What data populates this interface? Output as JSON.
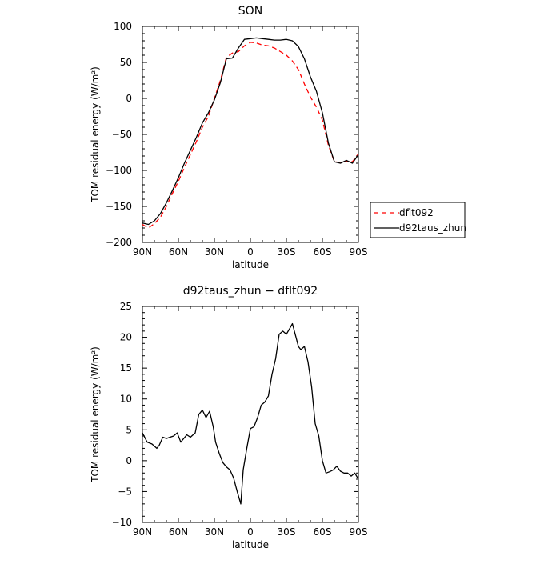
{
  "chart_data": [
    {
      "type": "line",
      "title": "SON",
      "xlabel": "latitude",
      "ylabel": "TOM residual energy (W/m²)",
      "xlim": [
        90,
        -90
      ],
      "ylim": [
        -200,
        100
      ],
      "x_ticks": [
        90,
        60,
        30,
        0,
        -30,
        -60,
        -90
      ],
      "x_tick_labels": [
        "90N",
        "60N",
        "30N",
        "0",
        "30S",
        "60S",
        "90S"
      ],
      "y_ticks": [
        -200,
        -150,
        -100,
        -50,
        0,
        50,
        100
      ],
      "y_tick_labels": [
        "−200",
        "−150",
        "−100",
        "−50",
        "0",
        "50",
        "100"
      ],
      "grid": false,
      "legend_position": "right",
      "series": [
        {
          "name": "dflt092",
          "color": "#ff0000",
          "dash": "dashed",
          "x": [
            90,
            85,
            80,
            75,
            70,
            65,
            60,
            55,
            50,
            45,
            40,
            35,
            30,
            25,
            20,
            15,
            10,
            5,
            0,
            -5,
            -10,
            -15,
            -20,
            -25,
            -30,
            -35,
            -40,
            -45,
            -50,
            -55,
            -60,
            -65,
            -70,
            -75,
            -80,
            -85,
            -90
          ],
          "values": [
            -175,
            -180,
            -174,
            -165,
            -150,
            -132,
            -115,
            -96,
            -78,
            -60,
            -40,
            -25,
            0,
            25,
            57,
            63,
            65,
            73,
            78,
            77,
            74,
            73,
            70,
            65,
            60,
            52,
            40,
            20,
            2,
            -12,
            -30,
            -65,
            -88,
            -89,
            -87,
            -88,
            -77
          ]
        },
        {
          "name": "d92taus_zhun",
          "color": "#000000",
          "dash": "solid",
          "x": [
            90,
            85,
            80,
            75,
            70,
            65,
            60,
            55,
            50,
            45,
            40,
            35,
            30,
            25,
            20,
            15,
            10,
            5,
            0,
            -5,
            -10,
            -15,
            -20,
            -25,
            -30,
            -35,
            -40,
            -45,
            -50,
            -55,
            -60,
            -65,
            -70,
            -75,
            -80,
            -85,
            -90
          ],
          "values": [
            -173,
            -175,
            -170,
            -160,
            -145,
            -128,
            -110,
            -90,
            -72,
            -54,
            -34,
            -20,
            -2,
            22,
            55,
            56,
            70,
            82,
            83,
            84,
            83,
            82,
            81,
            81,
            82,
            80,
            72,
            55,
            30,
            10,
            -20,
            -62,
            -88,
            -90,
            -86,
            -90,
            -78
          ]
        }
      ]
    },
    {
      "type": "line",
      "title": "d92taus_zhun − dflt092",
      "xlabel": "latitude",
      "ylabel": "TOM residual energy (W/m²)",
      "xlim": [
        90,
        -90
      ],
      "ylim": [
        -10,
        25
      ],
      "x_ticks": [
        90,
        60,
        30,
        0,
        -30,
        -60,
        -90
      ],
      "x_tick_labels": [
        "90N",
        "60N",
        "30N",
        "0",
        "30S",
        "60S",
        "90S"
      ],
      "y_ticks": [
        -10,
        -5,
        0,
        5,
        10,
        15,
        20,
        25
      ],
      "y_tick_labels": [
        "−10",
        "−5",
        "0",
        "5",
        "10",
        "15",
        "20",
        "25"
      ],
      "grid": false,
      "series": [
        {
          "color": "#000000",
          "dash": "solid",
          "x": [
            90,
            86,
            82,
            78,
            76,
            73,
            70,
            67,
            64,
            61,
            58,
            56,
            53,
            50,
            46,
            43,
            40,
            37,
            34,
            31,
            29,
            26,
            23,
            20,
            17,
            14,
            11,
            8,
            6,
            3,
            0,
            -3,
            -6,
            -9,
            -12,
            -15,
            -18,
            -21,
            -24,
            -27,
            -30,
            -33,
            -35,
            -38,
            -40,
            -42,
            -45,
            -48,
            -51,
            -54,
            -57,
            -60,
            -63,
            -66,
            -69,
            -72,
            -75,
            -78,
            -81,
            -84,
            -87,
            -90
          ],
          "values": [
            4.5,
            3.0,
            2.7,
            2.0,
            2.5,
            3.8,
            3.6,
            3.8,
            4.0,
            4.5,
            3.0,
            3.5,
            4.2,
            3.8,
            4.5,
            7.5,
            8.2,
            7.0,
            8.0,
            5.5,
            3.0,
            1.2,
            -0.3,
            -1.0,
            -1.5,
            -2.8,
            -5.0,
            -7.0,
            -1.5,
            2.0,
            5.2,
            5.5,
            7.0,
            9.0,
            9.5,
            10.5,
            14.0,
            16.5,
            20.5,
            21.0,
            20.5,
            21.5,
            22.2,
            20.0,
            18.5,
            18.0,
            18.5,
            16.0,
            12.0,
            6.0,
            4.0,
            0.0,
            -2.0,
            -1.8,
            -1.5,
            -0.9,
            -1.7,
            -2.0,
            -2.0,
            -2.5,
            -2.0,
            -3.0
          ]
        }
      ]
    }
  ]
}
